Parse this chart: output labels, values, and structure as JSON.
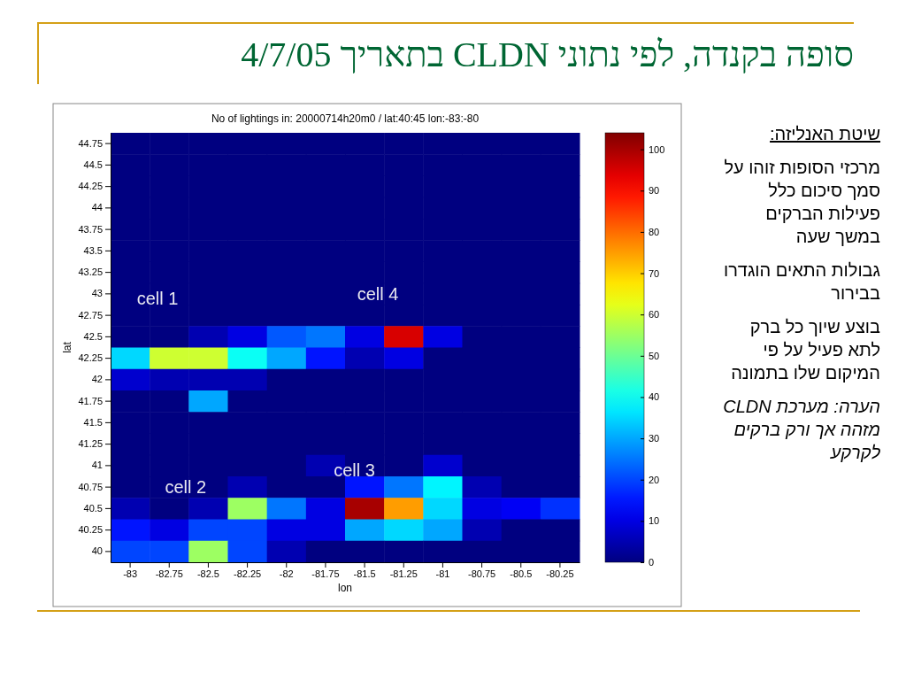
{
  "chart_data": {
    "type": "heatmap",
    "title": "סופה בקנדה, לפי נתוני CLDN בתאריך 4/7/05",
    "subtitle": "No of lightings in: 20000714h20m0 /  lat:40:45 lon:-83:-80",
    "xlabel": "lon",
    "ylabel": "lat",
    "categories": [
      "-83",
      "-82.75",
      "-82.5",
      "-82.25",
      "-82",
      "-81.75",
      "-81.5",
      "-81.25",
      "-81",
      "-80.75",
      "-80.5",
      "-80.25"
    ],
    "y_categories": [
      "44.75",
      "44.5",
      "44.25",
      "44",
      "43.75",
      "43.5",
      "43.25",
      "43",
      "42.75",
      "42.5",
      "42.25",
      "42",
      "41.75",
      "41.5",
      "41.25",
      "41",
      "40.75",
      "40.5",
      "40.25",
      "40"
    ],
    "cells": [
      [
        0,
        0,
        0,
        0,
        0,
        0,
        0,
        0,
        0,
        0,
        0,
        0
      ],
      [
        0,
        0,
        0,
        0,
        0,
        0,
        0,
        0,
        0,
        0,
        0,
        0
      ],
      [
        0,
        0,
        0,
        0,
        0,
        0,
        0,
        0,
        0,
        0,
        0,
        0
      ],
      [
        0,
        0,
        0,
        0,
        0,
        0,
        0,
        0,
        0,
        0,
        0,
        0
      ],
      [
        0,
        0,
        0,
        0,
        0,
        0,
        0,
        0,
        0,
        0,
        0,
        0
      ],
      [
        0,
        0,
        0,
        0,
        0,
        0,
        0,
        0,
        0,
        0,
        0,
        0
      ],
      [
        0,
        0,
        0,
        0,
        0,
        0,
        0,
        0,
        0,
        0,
        0,
        0
      ],
      [
        0,
        0,
        0,
        0,
        0,
        0,
        0,
        0,
        0,
        0,
        0,
        0
      ],
      [
        0,
        0,
        0,
        0,
        0,
        0,
        0,
        0,
        0,
        0,
        0,
        0
      ],
      [
        0,
        0,
        5,
        10,
        22,
        25,
        10,
        95,
        10,
        0,
        0,
        0
      ],
      [
        35,
        60,
        60,
        40,
        30,
        15,
        5,
        10,
        0,
        0,
        0,
        0
      ],
      [
        8,
        5,
        5,
        5,
        0,
        0,
        0,
        0,
        0,
        0,
        0,
        0
      ],
      [
        0,
        0,
        30,
        0,
        0,
        0,
        0,
        0,
        0,
        0,
        0,
        0
      ],
      [
        0,
        0,
        0,
        0,
        0,
        0,
        0,
        0,
        0,
        0,
        0,
        0
      ],
      [
        0,
        0,
        0,
        0,
        0,
        0,
        0,
        0,
        0,
        0,
        0,
        0
      ],
      [
        0,
        0,
        0,
        0,
        0,
        5,
        0,
        0,
        8,
        0,
        0,
        0
      ],
      [
        0,
        0,
        0,
        5,
        0,
        0,
        15,
        25,
        38,
        5,
        0,
        0
      ],
      [
        5,
        0,
        5,
        55,
        25,
        10,
        100,
        75,
        35,
        10,
        12,
        18
      ],
      [
        15,
        10,
        20,
        20,
        10,
        10,
        30,
        35,
        30,
        5,
        0,
        0
      ],
      [
        20,
        20,
        55,
        20,
        5,
        0,
        0,
        0,
        0,
        0,
        0,
        0
      ]
    ],
    "clim": [
      0,
      104
    ],
    "cticks": [
      0,
      10,
      20,
      30,
      40,
      50,
      60,
      70,
      80,
      90,
      100
    ],
    "annotations": [
      "cell 1",
      "cell 4",
      "cell 2",
      "cell 3",
      "שיטת האנליזה:",
      "מרכזי הסופות זוהו על סמך סיכום כלל פעילות הברקים במשך שעה",
      "גבולות התאים הוגדרו בבירור",
      "בוצע שיוך כל ברק לתא פעיל על פי המיקום שלו בתמונה",
      "הערה: מערכת CLDN מזהה אך ורק ברקים לקרקע"
    ]
  }
}
